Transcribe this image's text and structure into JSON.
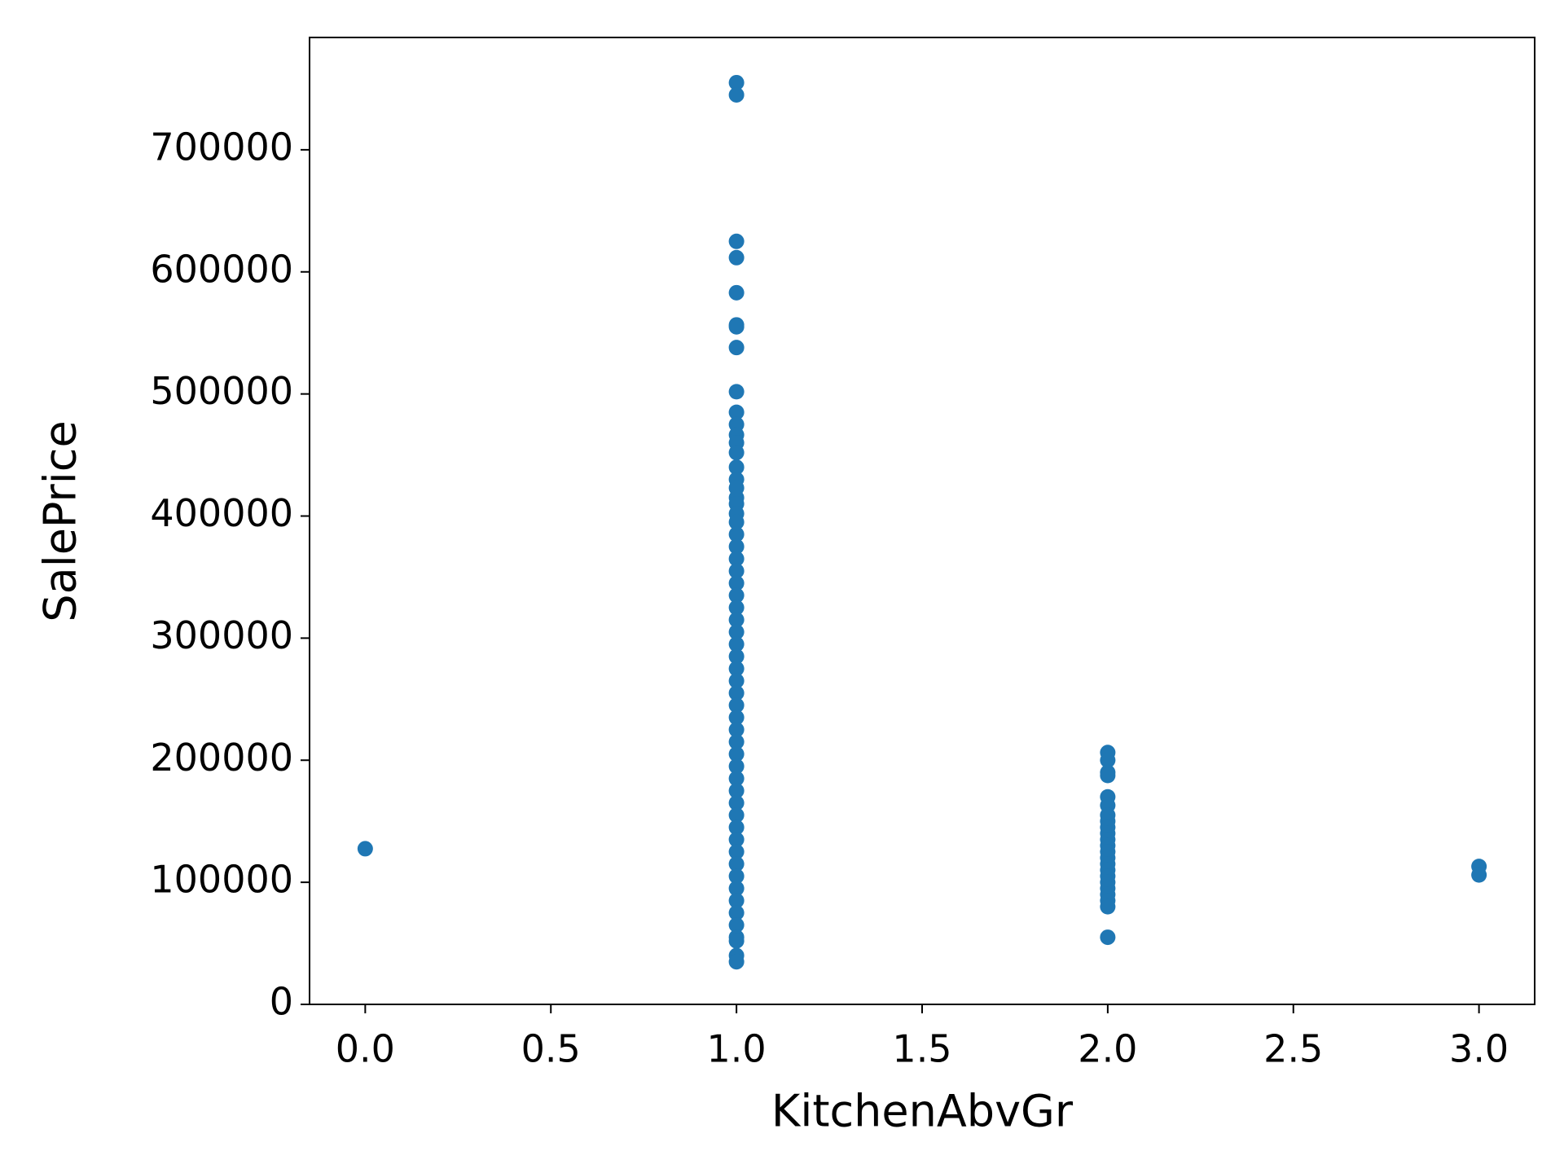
{
  "chart_data": {
    "type": "scatter",
    "xlabel": "KitchenAbvGr",
    "ylabel": "SalePrice",
    "x": [
      0,
      1,
      1,
      1,
      1,
      1,
      1,
      1,
      1,
      1,
      1,
      1,
      1,
      1,
      1,
      1,
      1,
      1,
      1,
      1,
      1,
      1,
      1,
      1,
      1,
      1,
      1,
      1,
      1,
      1,
      1,
      1,
      1,
      1,
      1,
      1,
      1,
      1,
      1,
      1,
      1,
      1,
      1,
      1,
      1,
      1,
      1,
      1,
      1,
      1,
      1,
      1,
      1,
      1,
      1,
      1,
      1,
      1,
      1,
      2,
      2,
      2,
      2,
      2,
      2,
      2,
      2,
      2,
      2,
      2,
      2,
      2,
      2,
      2,
      2,
      2,
      2,
      2,
      2,
      2,
      2,
      2,
      3,
      3
    ],
    "values": [
      127500,
      755000,
      745000,
      625000,
      611657,
      582933,
      556581,
      555000,
      538000,
      501837,
      485000,
      475000,
      466500,
      460000,
      451950,
      440000,
      430000,
      423000,
      415000,
      410000,
      402000,
      395000,
      385000,
      375000,
      365000,
      355000,
      345000,
      335000,
      325000,
      315000,
      305000,
      295000,
      285000,
      275000,
      265000,
      255000,
      245000,
      235000,
      225000,
      215000,
      205000,
      195000,
      185000,
      175000,
      165000,
      155000,
      145000,
      135000,
      125000,
      115000,
      105000,
      95000,
      85000,
      75000,
      65000,
      55000,
      52000,
      40000,
      34900,
      206300,
      200000,
      190000,
      187500,
      170000,
      163000,
      155000,
      150000,
      145000,
      140000,
      135000,
      130000,
      125000,
      120000,
      115000,
      110000,
      105000,
      100000,
      95000,
      90000,
      85000,
      80000,
      55000,
      113000,
      106000
    ],
    "color": "#1f77b4",
    "xlim": [
      -0.15,
      3.15
    ],
    "xticks": [
      {
        "value": 0,
        "label": "0.0"
      },
      0.5,
      {
        "value": 1,
        "label": "1.0"
      },
      1.5,
      {
        "value": 2,
        "label": "2.0"
      },
      2.5,
      {
        "value": 3,
        "label": "3.0"
      }
    ],
    "ylim": [
      0,
      792000
    ],
    "yticks": [
      0,
      100000,
      200000,
      300000,
      400000,
      500000,
      600000,
      700000
    ],
    "grid": false
  }
}
